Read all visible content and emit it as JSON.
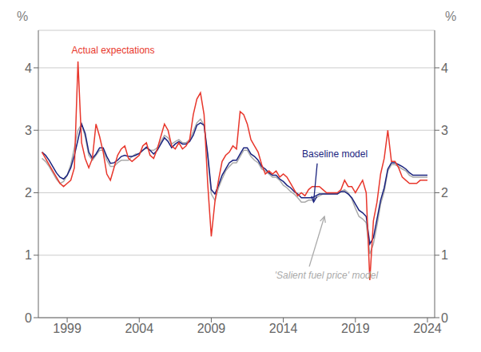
{
  "chart_data": {
    "type": "line",
    "ylabel": "%",
    "y2label": "%",
    "x": [
      1997.25,
      1997.5,
      1997.75,
      1998.0,
      1998.25,
      1998.5,
      1998.75,
      1999.0,
      1999.25,
      1999.5,
      1999.75,
      2000.0,
      2000.25,
      2000.5,
      2000.75,
      2001.0,
      2001.25,
      2001.5,
      2001.75,
      2002.0,
      2002.25,
      2002.5,
      2002.75,
      2003.0,
      2003.25,
      2003.5,
      2003.75,
      2004.0,
      2004.25,
      2004.5,
      2004.75,
      2005.0,
      2005.25,
      2005.5,
      2005.75,
      2006.0,
      2006.25,
      2006.5,
      2006.75,
      2007.0,
      2007.25,
      2007.5,
      2007.75,
      2008.0,
      2008.25,
      2008.5,
      2008.75,
      2009.0,
      2009.25,
      2009.5,
      2009.75,
      2010.0,
      2010.25,
      2010.5,
      2010.75,
      2011.0,
      2011.25,
      2011.5,
      2011.75,
      2012.0,
      2012.25,
      2012.5,
      2012.75,
      2013.0,
      2013.25,
      2013.5,
      2013.75,
      2014.0,
      2014.25,
      2014.5,
      2014.75,
      2015.0,
      2015.25,
      2015.5,
      2015.75,
      2016.0,
      2016.25,
      2016.5,
      2016.75,
      2017.0,
      2017.25,
      2017.5,
      2017.75,
      2018.0,
      2018.25,
      2018.5,
      2018.75,
      2019.0,
      2019.25,
      2019.5,
      2019.75,
      2020.0,
      2020.25,
      2020.5,
      2020.75,
      2021.0,
      2021.25,
      2021.5,
      2021.75,
      2022.0,
      2022.25,
      2022.5,
      2022.75,
      2023.0,
      2023.25,
      2023.5,
      2023.75,
      2024.0
    ],
    "series": [
      {
        "color": "#aaaaaa",
        "values": [
          2.55,
          2.5,
          2.42,
          2.32,
          2.22,
          2.15,
          2.18,
          2.28,
          2.45,
          2.72,
          3.0,
          3.1,
          2.9,
          2.6,
          2.52,
          2.6,
          2.68,
          2.68,
          2.52,
          2.42,
          2.42,
          2.48,
          2.52,
          2.52,
          2.52,
          2.58,
          2.62,
          2.62,
          2.68,
          2.72,
          2.68,
          2.68,
          2.72,
          2.82,
          2.92,
          2.88,
          2.78,
          2.82,
          2.85,
          2.8,
          2.8,
          2.85,
          2.98,
          3.12,
          3.18,
          3.08,
          2.58,
          1.98,
          1.88,
          2.08,
          2.22,
          2.35,
          2.42,
          2.48,
          2.48,
          2.58,
          2.68,
          2.68,
          2.58,
          2.52,
          2.48,
          2.38,
          2.35,
          2.3,
          2.25,
          2.25,
          2.2,
          2.12,
          2.08,
          2.02,
          1.98,
          1.92,
          1.85,
          1.85,
          1.88,
          1.88,
          1.92,
          1.95,
          1.98,
          1.98,
          1.98,
          1.98,
          1.98,
          2.02,
          2.05,
          2.0,
          1.9,
          1.75,
          1.62,
          1.58,
          1.52,
          1.02,
          1.18,
          1.48,
          1.82,
          2.02,
          2.35,
          2.45,
          2.45,
          2.42,
          2.38,
          2.35,
          2.28,
          2.25,
          2.25,
          2.25,
          2.25,
          2.25
        ]
      },
      {
        "color": "#1a237e",
        "values": [
          2.65,
          2.6,
          2.52,
          2.42,
          2.32,
          2.25,
          2.22,
          2.28,
          2.4,
          2.6,
          2.85,
          3.1,
          2.95,
          2.65,
          2.55,
          2.62,
          2.72,
          2.72,
          2.58,
          2.47,
          2.48,
          2.52,
          2.58,
          2.6,
          2.58,
          2.58,
          2.6,
          2.63,
          2.68,
          2.73,
          2.68,
          2.62,
          2.68,
          2.78,
          2.88,
          2.82,
          2.72,
          2.78,
          2.82,
          2.78,
          2.78,
          2.82,
          2.92,
          3.08,
          3.12,
          3.08,
          2.62,
          2.05,
          1.98,
          2.12,
          2.28,
          2.38,
          2.48,
          2.52,
          2.52,
          2.62,
          2.72,
          2.72,
          2.62,
          2.58,
          2.52,
          2.42,
          2.38,
          2.32,
          2.28,
          2.28,
          2.22,
          2.18,
          2.12,
          2.08,
          2.02,
          1.98,
          1.92,
          1.92,
          1.92,
          1.92,
          1.95,
          1.98,
          1.98,
          1.98,
          1.98,
          1.98,
          1.98,
          2.02,
          2.02,
          1.98,
          1.92,
          1.82,
          1.72,
          1.68,
          1.62,
          1.18,
          1.28,
          1.58,
          1.88,
          2.08,
          2.38,
          2.48,
          2.48,
          2.45,
          2.42,
          2.38,
          2.32,
          2.28,
          2.28,
          2.28,
          2.28,
          2.28
        ]
      },
      {
        "color": "#e8372c",
        "values": [
          2.65,
          2.55,
          2.45,
          2.35,
          2.25,
          2.15,
          2.1,
          2.15,
          2.2,
          2.4,
          4.1,
          2.8,
          2.55,
          2.4,
          2.55,
          3.1,
          2.9,
          2.65,
          2.3,
          2.2,
          2.4,
          2.6,
          2.7,
          2.75,
          2.55,
          2.5,
          2.55,
          2.6,
          2.75,
          2.8,
          2.6,
          2.55,
          2.7,
          2.9,
          3.1,
          3.0,
          2.75,
          2.7,
          2.8,
          2.7,
          2.75,
          2.85,
          3.25,
          3.5,
          3.6,
          3.25,
          2.15,
          1.3,
          1.85,
          2.2,
          2.5,
          2.6,
          2.65,
          2.75,
          2.7,
          3.3,
          3.25,
          3.1,
          2.85,
          2.75,
          2.65,
          2.45,
          2.3,
          2.35,
          2.3,
          2.35,
          2.25,
          2.3,
          2.25,
          2.15,
          2.05,
          1.95,
          2.0,
          1.95,
          2.05,
          2.1,
          2.1,
          2.1,
          2.05,
          2.0,
          2.0,
          2.0,
          2.0,
          2.05,
          2.2,
          2.1,
          2.1,
          2.0,
          2.1,
          2.2,
          2.0,
          0.6,
          1.55,
          1.85,
          2.3,
          2.55,
          3.0,
          2.5,
          2.5,
          2.4,
          2.25,
          2.2,
          2.15,
          2.15,
          2.15,
          2.2,
          2.2,
          2.2
        ]
      }
    ],
    "xlim": [
      1997.0,
      2024.5
    ],
    "xticks": [
      1999,
      2004,
      2009,
      2014,
      2019,
      2024
    ],
    "ylim": [
      0,
      4.6
    ],
    "yticks": [
      0,
      1,
      2,
      3,
      4
    ],
    "y2lim": [
      0,
      4.6
    ],
    "y2ticks": [
      0,
      1,
      2,
      3,
      4
    ],
    "grid": true,
    "annotations": [
      {
        "text": "Actual expectations",
        "color": "#e8372c"
      },
      {
        "text": "Baseline model",
        "color": "#1a237e"
      },
      {
        "text": "'Salient fuel price' model",
        "color": "#aaaaaa"
      }
    ]
  }
}
